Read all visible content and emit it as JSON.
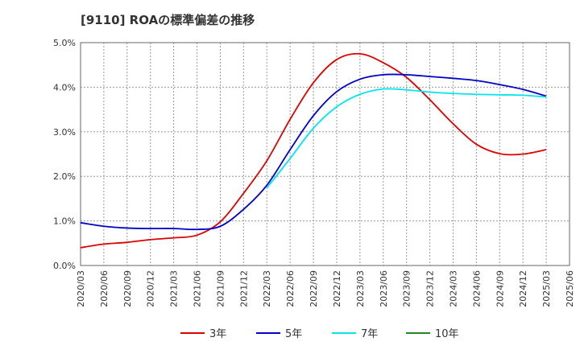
{
  "chart_data": {
    "type": "line",
    "title": "[9110]  ROAの標準偏差の推移",
    "xlabel": "",
    "ylabel": "",
    "ylim": [
      0,
      5
    ],
    "y_ticks": [
      "0.0%",
      "1.0%",
      "2.0%",
      "3.0%",
      "4.0%",
      "5.0%"
    ],
    "grid": true,
    "legend_position": "bottom",
    "x": [
      "2020/03",
      "2020/06",
      "2020/09",
      "2020/12",
      "2021/03",
      "2021/06",
      "2021/09",
      "2021/12",
      "2022/03",
      "2022/06",
      "2022/09",
      "2022/12",
      "2023/03",
      "2023/06",
      "2023/09",
      "2023/12",
      "2024/03",
      "2024/06",
      "2024/09",
      "2024/12",
      "2025/03",
      "2025/06"
    ],
    "series": [
      {
        "name": "3年",
        "color": "#dd0000",
        "values": [
          0.4,
          0.48,
          0.52,
          0.58,
          0.62,
          0.68,
          0.98,
          1.62,
          2.35,
          3.28,
          4.1,
          4.62,
          4.75,
          4.55,
          4.22,
          3.72,
          3.18,
          2.72,
          2.51,
          2.5,
          2.6,
          null
        ]
      },
      {
        "name": "5年",
        "color": "#0000cc",
        "values": [
          0.96,
          0.88,
          0.84,
          0.83,
          0.83,
          0.81,
          0.88,
          1.26,
          1.8,
          2.6,
          3.36,
          3.9,
          4.18,
          4.28,
          4.28,
          4.24,
          4.2,
          4.15,
          4.06,
          3.95,
          3.8,
          null
        ]
      },
      {
        "name": "7年",
        "color": "#00e5ee",
        "values": [
          null,
          null,
          null,
          null,
          null,
          null,
          null,
          null,
          1.74,
          2.4,
          3.08,
          3.56,
          3.84,
          3.96,
          3.94,
          3.89,
          3.86,
          3.84,
          3.83,
          3.82,
          3.78,
          null
        ]
      },
      {
        "name": "10年",
        "color": "#228822",
        "values": [
          null,
          null,
          null,
          null,
          null,
          null,
          null,
          null,
          null,
          null,
          null,
          null,
          null,
          null,
          null,
          null,
          null,
          null,
          null,
          null,
          null,
          null
        ]
      }
    ]
  }
}
